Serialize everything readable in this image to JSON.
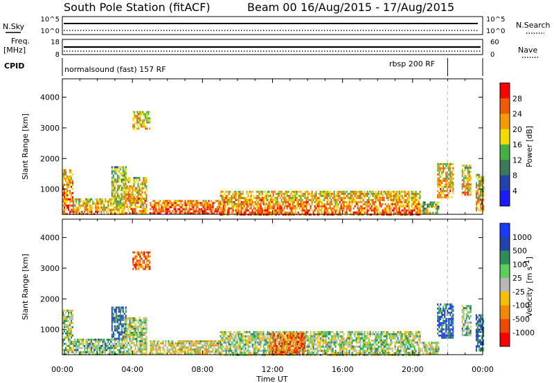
{
  "title": {
    "station": "South Pole Station (fitACF)",
    "beam": "Beam 00",
    "dates": "16/Aug/2015 - 17/Aug/2015"
  },
  "top_panels": {
    "nsky_label": "N.Sky",
    "nsky_ticks": [
      "10^5",
      "10^0"
    ],
    "nsearch_label": "N.Search",
    "nsearch_ticks": [
      "10^5",
      "10^0"
    ],
    "freq_label": "Freq.",
    "freq_unit": "[MHz]",
    "freq_ticks": [
      "18",
      "8"
    ],
    "nave_label": "Nave",
    "nave_ticks": [
      "60",
      "0"
    ],
    "cpid_label": "CPID",
    "cpid_modes": [
      {
        "name": "normalsound (fast) 157 RF",
        "start_hour": 0,
        "end_hour": 22
      },
      {
        "name": "rbsp 200 RF",
        "start_hour": 22,
        "end_hour": 24
      }
    ]
  },
  "colors": {
    "power_scale": [
      "#1a1aff",
      "#2244aa",
      "#3a7a5a",
      "#44b044",
      "#f0dc00",
      "#f59a00",
      "#f05a00",
      "#ff0000"
    ],
    "velocity_scale": [
      "#ff0000",
      "#f04a00",
      "#f08a00",
      "#f5c000",
      "#b8b8b8",
      "#5ad05a",
      "#2e8c5a",
      "#2244aa",
      "#1a3aff"
    ],
    "ground_scatter": "#999999"
  },
  "chart_data": [
    {
      "type": "heatmap",
      "panel": "power",
      "title": "",
      "xlabel": "Time UT",
      "ylabel": "Slant Range [km]",
      "xlim_hours": [
        0,
        24
      ],
      "x_ticks": [
        "00:00",
        "04:00",
        "08:00",
        "12:00",
        "16:00",
        "20:00",
        "00:00"
      ],
      "ylim": [
        180,
        4600
      ],
      "y_ticks": [
        1000,
        2000,
        3000,
        4000
      ],
      "colorbar": {
        "label": "Power [dB]",
        "range": [
          0,
          32
        ],
        "ticks": [
          4,
          8,
          12,
          16,
          20,
          24,
          28
        ]
      },
      "regions": [
        {
          "t": [
            0.0,
            0.6
          ],
          "r": [
            200,
            1650
          ],
          "level": 0.65
        },
        {
          "t": [
            0.6,
            3.5
          ],
          "r": [
            200,
            700
          ],
          "level": 0.55
        },
        {
          "t": [
            2.8,
            3.6
          ],
          "r": [
            700,
            1750
          ],
          "level": 0.4
        },
        {
          "t": [
            3.5,
            4.8
          ],
          "r": [
            200,
            1400
          ],
          "level": 0.55
        },
        {
          "t": [
            4.0,
            5.0
          ],
          "r": [
            3000,
            3550
          ],
          "level": 0.5
        },
        {
          "t": [
            5.0,
            9.0
          ],
          "r": [
            200,
            650
          ],
          "level": 0.7
        },
        {
          "t": [
            9.0,
            20.4
          ],
          "r": [
            200,
            950
          ],
          "level": 0.6
        },
        {
          "t": [
            20.5,
            21.5
          ],
          "r": [
            200,
            600
          ],
          "level": 0.35
        },
        {
          "t": [
            21.4,
            22.3
          ],
          "r": [
            700,
            1850
          ],
          "level": 0.55
        },
        {
          "t": [
            22.8,
            23.3
          ],
          "r": [
            800,
            1800
          ],
          "level": 0.5
        },
        {
          "t": [
            23.6,
            24.0
          ],
          "r": [
            300,
            1500
          ],
          "level": 0.55
        }
      ]
    },
    {
      "type": "heatmap",
      "panel": "velocity",
      "title": "",
      "xlabel": "Time UT",
      "ylabel": "Slant Range [km]",
      "xlim_hours": [
        0,
        24
      ],
      "x_ticks": [
        "00:00",
        "04:00",
        "08:00",
        "12:00",
        "16:00",
        "20:00",
        "00:00"
      ],
      "ylim": [
        180,
        4600
      ],
      "y_ticks": [
        1000,
        2000,
        3000,
        4000
      ],
      "colorbar": {
        "label": "Velocity",
        "unit": "[m s",
        "unit_exp": "-1",
        "unit_close": "]",
        "ticks": [
          "1000",
          "500",
          "100",
          "25",
          "-25",
          "-100",
          "-500",
          "-1000"
        ]
      },
      "regions": [
        {
          "t": [
            0.0,
            0.6
          ],
          "r": [
            200,
            1650
          ],
          "level": 0.55
        },
        {
          "t": [
            0.6,
            3.5
          ],
          "r": [
            200,
            700
          ],
          "level": 0.6
        },
        {
          "t": [
            2.8,
            3.6
          ],
          "r": [
            700,
            1750
          ],
          "level": 0.8
        },
        {
          "t": [
            3.5,
            4.8
          ],
          "r": [
            200,
            1400
          ],
          "level": 0.55
        },
        {
          "t": [
            4.0,
            5.0
          ],
          "r": [
            3000,
            3550
          ],
          "level": 0.2
        },
        {
          "t": [
            5.0,
            9.0
          ],
          "r": [
            200,
            650
          ],
          "level": 0.45
        },
        {
          "t": [
            9.0,
            20.4
          ],
          "r": [
            200,
            950
          ],
          "level": 0.55
        },
        {
          "t": [
            11.8,
            13.8
          ],
          "r": [
            200,
            900
          ],
          "level": 0.2
        },
        {
          "t": [
            20.5,
            21.5
          ],
          "r": [
            200,
            600
          ],
          "level": 0.5
        },
        {
          "t": [
            21.4,
            22.3
          ],
          "r": [
            700,
            1850
          ],
          "level": 0.85
        },
        {
          "t": [
            22.8,
            23.3
          ],
          "r": [
            800,
            1800
          ],
          "level": 0.6
        },
        {
          "t": [
            23.6,
            24.0
          ],
          "r": [
            300,
            1500
          ],
          "level": 0.8
        }
      ]
    }
  ]
}
